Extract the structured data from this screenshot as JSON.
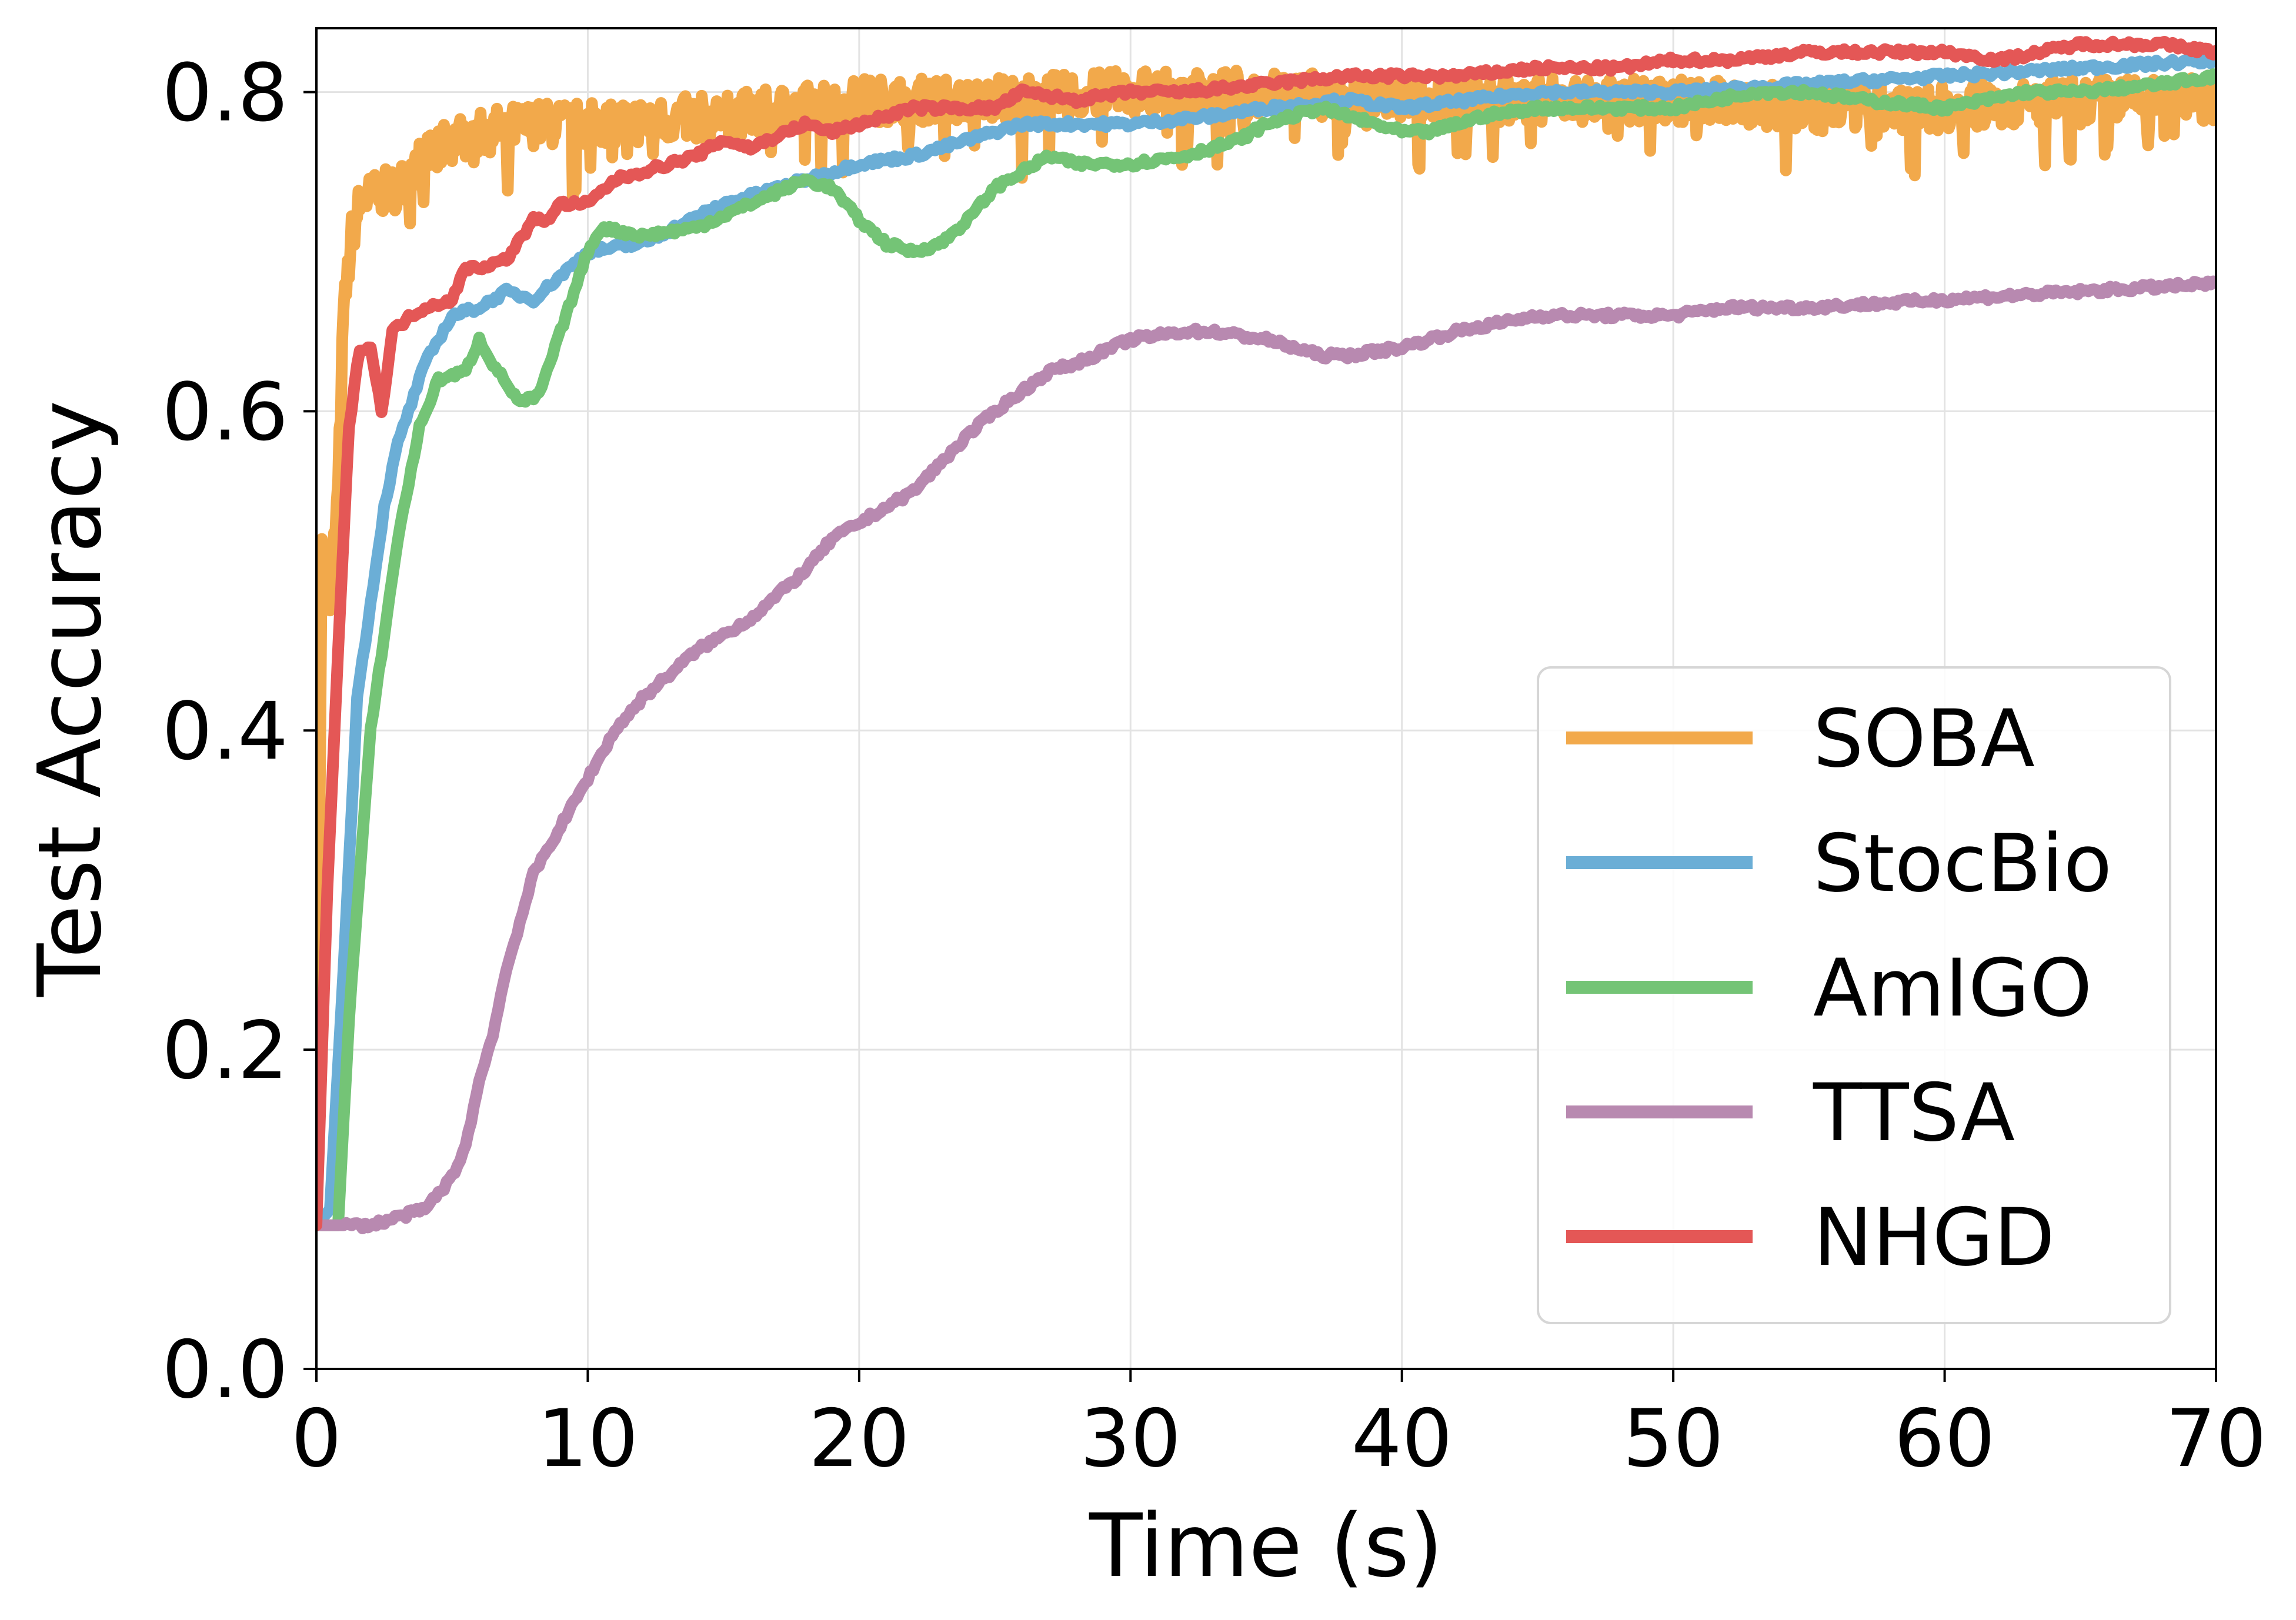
{
  "chart_data": {
    "type": "line",
    "title": "",
    "xlabel": "Time (s)",
    "ylabel": "Test Accuracy",
    "xlim": [
      0,
      70
    ],
    "ylim": [
      0,
      0.84
    ],
    "xticks": [
      0,
      10,
      20,
      30,
      40,
      50,
      60,
      70
    ],
    "xtick_labels": [
      "0",
      "10",
      "20",
      "30",
      "40",
      "50",
      "60",
      "70"
    ],
    "yticks": [
      0.0,
      0.2,
      0.4,
      0.6,
      0.8
    ],
    "ytick_labels": [
      "0.0",
      "0.2",
      "0.4",
      "0.6",
      "0.8"
    ],
    "grid": true,
    "legend_position": "bottom-right",
    "series": [
      {
        "name": "SOBA",
        "color": "#f2a94b",
        "noisy": true,
        "x": [
          0,
          0.2,
          0.5,
          0.8,
          1.0,
          1.3,
          1.6,
          2.0,
          3,
          4,
          5,
          6,
          8,
          10,
          15,
          20,
          25,
          30,
          35,
          40,
          45,
          50,
          55,
          60,
          65,
          70
        ],
        "y": [
          0.1,
          0.52,
          0.48,
          0.55,
          0.66,
          0.71,
          0.73,
          0.735,
          0.74,
          0.76,
          0.77,
          0.775,
          0.78,
          0.78,
          0.785,
          0.795,
          0.795,
          0.8,
          0.8,
          0.795,
          0.795,
          0.795,
          0.79,
          0.79,
          0.795,
          0.795
        ]
      },
      {
        "name": "StocBio",
        "color": "#6baed6",
        "noisy": false,
        "x": [
          0,
          0.5,
          1.0,
          1.5,
          2,
          2.5,
          3,
          4,
          5,
          6,
          7,
          8,
          9,
          10,
          12,
          15,
          18,
          20,
          22,
          24,
          26,
          28,
          30,
          33,
          35,
          38,
          40,
          45,
          50,
          55,
          60,
          65,
          70
        ],
        "y": [
          0.09,
          0.1,
          0.25,
          0.42,
          0.48,
          0.54,
          0.58,
          0.63,
          0.66,
          0.665,
          0.675,
          0.67,
          0.685,
          0.7,
          0.705,
          0.73,
          0.745,
          0.755,
          0.76,
          0.77,
          0.78,
          0.78,
          0.78,
          0.785,
          0.79,
          0.795,
          0.79,
          0.8,
          0.8,
          0.805,
          0.81,
          0.815,
          0.82
        ]
      },
      {
        "name": "AmIGO",
        "color": "#74c476",
        "noisy": false,
        "x": [
          0,
          0.8,
          1.2,
          2,
          3,
          3.8,
          4.5,
          5.5,
          6.0,
          6.5,
          7.5,
          8.2,
          9,
          10,
          10.5,
          12,
          14,
          16,
          18,
          19,
          20,
          21,
          22,
          23,
          24,
          25,
          27,
          28,
          30,
          32,
          34,
          35,
          37,
          38,
          40,
          41,
          43,
          45,
          48,
          50,
          53,
          55,
          57,
          60,
          63,
          65,
          68,
          70
        ],
        "y": [
          0.09,
          0.09,
          0.22,
          0.4,
          0.52,
          0.59,
          0.62,
          0.625,
          0.645,
          0.63,
          0.605,
          0.61,
          0.65,
          0.7,
          0.715,
          0.71,
          0.715,
          0.73,
          0.745,
          0.74,
          0.72,
          0.705,
          0.7,
          0.705,
          0.72,
          0.74,
          0.76,
          0.755,
          0.755,
          0.76,
          0.77,
          0.78,
          0.79,
          0.785,
          0.775,
          0.775,
          0.785,
          0.79,
          0.79,
          0.79,
          0.8,
          0.8,
          0.795,
          0.79,
          0.8,
          0.8,
          0.805,
          0.81
        ]
      },
      {
        "name": "TTSA",
        "color": "#b889b0",
        "noisy": false,
        "x": [
          0,
          1,
          2,
          3,
          4,
          5,
          5.5,
          6,
          6.5,
          7,
          7.5,
          8,
          9,
          10,
          11,
          12,
          14,
          16,
          18,
          19,
          20,
          22,
          24,
          25,
          27,
          28,
          30,
          32,
          33,
          35,
          37,
          38,
          40,
          42,
          45,
          48,
          50,
          52,
          55,
          60,
          65,
          70
        ],
        "y": [
          0.09,
          0.09,
          0.09,
          0.095,
          0.1,
          0.12,
          0.14,
          0.18,
          0.21,
          0.25,
          0.28,
          0.31,
          0.34,
          0.37,
          0.4,
          0.42,
          0.45,
          0.47,
          0.5,
          0.52,
          0.53,
          0.55,
          0.585,
          0.6,
          0.625,
          0.63,
          0.645,
          0.65,
          0.65,
          0.645,
          0.635,
          0.635,
          0.64,
          0.65,
          0.66,
          0.66,
          0.66,
          0.665,
          0.665,
          0.67,
          0.675,
          0.68
        ]
      },
      {
        "name": "NHGD",
        "color": "#e45756",
        "noisy": false,
        "x": [
          0,
          0.4,
          0.8,
          1.2,
          1.6,
          2.0,
          2.4,
          2.8,
          3.5,
          4,
          5,
          5.5,
          6,
          7,
          8,
          8.5,
          9,
          10,
          11,
          12,
          13,
          14,
          15,
          16,
          18,
          19,
          20,
          22,
          24,
          25,
          26,
          28,
          30,
          32,
          35,
          38,
          40,
          42,
          45,
          48,
          50,
          52,
          55,
          58,
          60,
          62,
          65,
          68,
          70
        ],
        "y": [
          0.09,
          0.3,
          0.45,
          0.59,
          0.64,
          0.64,
          0.6,
          0.65,
          0.66,
          0.665,
          0.67,
          0.69,
          0.69,
          0.695,
          0.72,
          0.72,
          0.73,
          0.73,
          0.745,
          0.75,
          0.755,
          0.76,
          0.77,
          0.765,
          0.78,
          0.775,
          0.78,
          0.79,
          0.79,
          0.79,
          0.8,
          0.795,
          0.8,
          0.8,
          0.805,
          0.81,
          0.81,
          0.81,
          0.815,
          0.815,
          0.82,
          0.82,
          0.825,
          0.825,
          0.825,
          0.82,
          0.83,
          0.83,
          0.825
        ]
      }
    ]
  }
}
